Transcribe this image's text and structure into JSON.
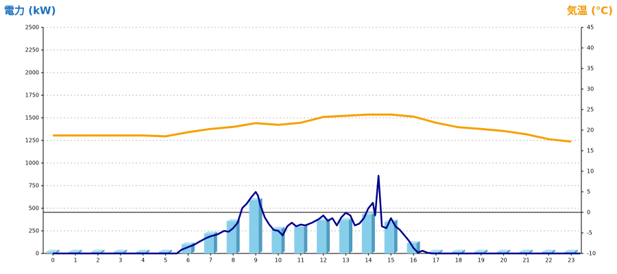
{
  "chart_data": {
    "type": "combo",
    "y_title": "電力 (kW)",
    "y2_title": "気温 (℃)",
    "categories": [
      "0",
      "1",
      "2",
      "3",
      "4",
      "5",
      "6",
      "7",
      "8",
      "9",
      "10",
      "11",
      "12",
      "13",
      "14",
      "15",
      "16",
      "17",
      "18",
      "19",
      "20",
      "21",
      "22",
      "23"
    ],
    "xlim": [
      -0.43,
      23.45
    ],
    "ylim": [
      0,
      2500
    ],
    "yticks": [
      0,
      250,
      500,
      750,
      1000,
      1250,
      1500,
      1750,
      2000,
      2250,
      2500
    ],
    "y2lim": [
      -10,
      45
    ],
    "y2ticks": [
      -10,
      -5,
      0,
      5,
      10,
      15,
      20,
      25,
      30,
      35,
      40,
      45
    ],
    "grid": true,
    "reference_line": {
      "axis": "y2",
      "value": 0,
      "color": "#000000"
    },
    "bars": {
      "color": "#87ceeb",
      "values": [
        20,
        20,
        20,
        20,
        20,
        20,
        100,
        220,
        356,
        590,
        273,
        295,
        364,
        370,
        432,
        350,
        114,
        20,
        20,
        20,
        20,
        20,
        20,
        20
      ]
    },
    "line": {
      "color": "#00008b",
      "x": [
        0,
        5.5,
        5.7,
        6,
        6.3,
        6.5,
        6.8,
        7,
        7.3,
        7.6,
        7.8,
        8,
        8.2,
        8.4,
        8.6,
        8.8,
        9,
        9.1,
        9.2,
        9.4,
        9.6,
        9.8,
        10,
        10.2,
        10.4,
        10.6,
        10.8,
        11,
        11.2,
        11.5,
        11.8,
        12,
        12.2,
        12.4,
        12.6,
        12.8,
        13,
        13.2,
        13.4,
        13.6,
        13.8,
        14,
        14.2,
        14.3,
        14.45,
        14.6,
        14.8,
        15,
        15.2,
        15.4,
        15.6,
        15.8,
        16,
        16.2,
        16.4,
        16.6,
        16.8,
        23.4
      ],
      "values": [
        0,
        0,
        40,
        70,
        100,
        130,
        170,
        190,
        210,
        250,
        240,
        280,
        340,
        500,
        550,
        620,
        680,
        640,
        540,
        400,
        320,
        260,
        250,
        200,
        300,
        340,
        300,
        320,
        310,
        340,
        380,
        420,
        360,
        390,
        310,
        400,
        450,
        420,
        310,
        330,
        390,
        500,
        560,
        420,
        860,
        300,
        280,
        390,
        300,
        260,
        200,
        140,
        60,
        10,
        30,
        10,
        0,
        0
      ]
    },
    "temperature": {
      "color": "#f5a000",
      "axis": "y2",
      "values": [
        18.7,
        18.7,
        18.7,
        18.7,
        18.7,
        18.5,
        19.5,
        20.3,
        20.8,
        21.7,
        21.3,
        21.8,
        23.2,
        23.5,
        23.8,
        23.8,
        23.3,
        21.8,
        20.7,
        20.3,
        19.8,
        19,
        17.8,
        17.2
      ]
    }
  }
}
